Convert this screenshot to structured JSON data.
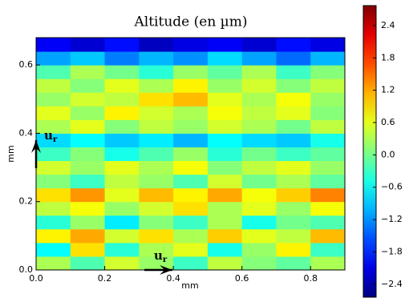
{
  "chart_data": {
    "type": "heatmap",
    "title": "Altitude (en µm)",
    "x_label": "mm",
    "y_label": "mm",
    "xlim": [
      0,
      0.9
    ],
    "ylim": [
      0,
      0.68
    ],
    "xticks": [
      {
        "value": 0,
        "label": "0.0"
      },
      0.2,
      0.4,
      0.6,
      0.8
    ],
    "yticks": [
      {
        "value": 0,
        "label": "0.0"
      },
      0.2,
      0.4,
      0.6
    ],
    "colormap": "jet",
    "clim": [
      -2.64,
      2.77
    ],
    "colorbar_ticks": [
      2.4,
      1.8,
      1.2,
      0.6,
      {
        "value": 0,
        "label": "0.0"
      },
      {
        "value": -0.6,
        "label": "−0.6"
      },
      {
        "value": -1.2,
        "label": "−1.2"
      },
      {
        "value": -1.8,
        "label": "−1.8"
      },
      {
        "value": -2.4,
        "label": "−2.4"
      }
    ],
    "z": [
      [
        0.3,
        -0.2,
        0.5,
        0.2,
        -0.3,
        0.4,
        0.1,
        -0.1,
        0.3
      ],
      [
        -0.6,
        0.9,
        -0.4,
        0.3,
        0.6,
        -0.5,
        0.2,
        0.8,
        -0.3
      ],
      [
        0.8,
        1.2,
        0.5,
        0.9,
        0.3,
        1.0,
        0.6,
        0.4,
        1.1
      ],
      [
        -0.4,
        0.2,
        -0.7,
        0.1,
        -0.3,
        0.3,
        -0.5,
        0.0,
        -0.2
      ],
      [
        0.4,
        0.7,
        0.2,
        0.5,
        0.9,
        0.3,
        0.6,
        0.2,
        0.7
      ],
      [
        0.9,
        1.3,
        0.6,
        1.1,
        0.8,
        1.2,
        0.7,
        1.0,
        1.4
      ],
      [
        0.1,
        -0.3,
        0.4,
        0.2,
        -0.2,
        0.5,
        0.0,
        0.3,
        -0.1
      ],
      [
        0.5,
        0.2,
        0.6,
        0.3,
        0.7,
        0.1,
        0.4,
        0.6,
        0.2
      ],
      [
        -0.3,
        0.1,
        -0.5,
        -0.2,
        0.2,
        -0.4,
        0.0,
        -0.3,
        -0.1
      ],
      [
        -0.8,
        -0.6,
        -0.9,
        -0.7,
        -1.0,
        -0.6,
        -0.8,
        -0.9,
        -0.5
      ],
      [
        0.3,
        0.6,
        0.1,
        0.4,
        0.2,
        0.5,
        0.3,
        0.0,
        0.4
      ],
      [
        0.6,
        0.2,
        0.8,
        0.5,
        0.3,
        0.7,
        0.4,
        0.6,
        0.1
      ],
      [
        0.2,
        0.5,
        0.4,
        0.9,
        1.1,
        0.6,
        0.3,
        0.7,
        0.2
      ],
      [
        0.4,
        0.1,
        0.6,
        0.3,
        0.8,
        0.2,
        0.5,
        0.1,
        0.4
      ],
      [
        -0.2,
        0.3,
        0.0,
        -0.4,
        0.2,
        -0.1,
        0.3,
        -0.3,
        0.1
      ],
      [
        -1.1,
        -0.9,
        -1.3,
        -1.0,
        -1.2,
        -0.8,
        -1.1,
        -1.4,
        -1.0
      ],
      [
        -2.0,
        -2.2,
        -1.9,
        -2.3,
        -2.1,
        -2.0,
        -2.2,
        -1.9,
        -2.1
      ]
    ],
    "annotations": [
      {
        "text": "u",
        "sub": "r"
      },
      {
        "text": "u",
        "sub": "r"
      }
    ]
  }
}
